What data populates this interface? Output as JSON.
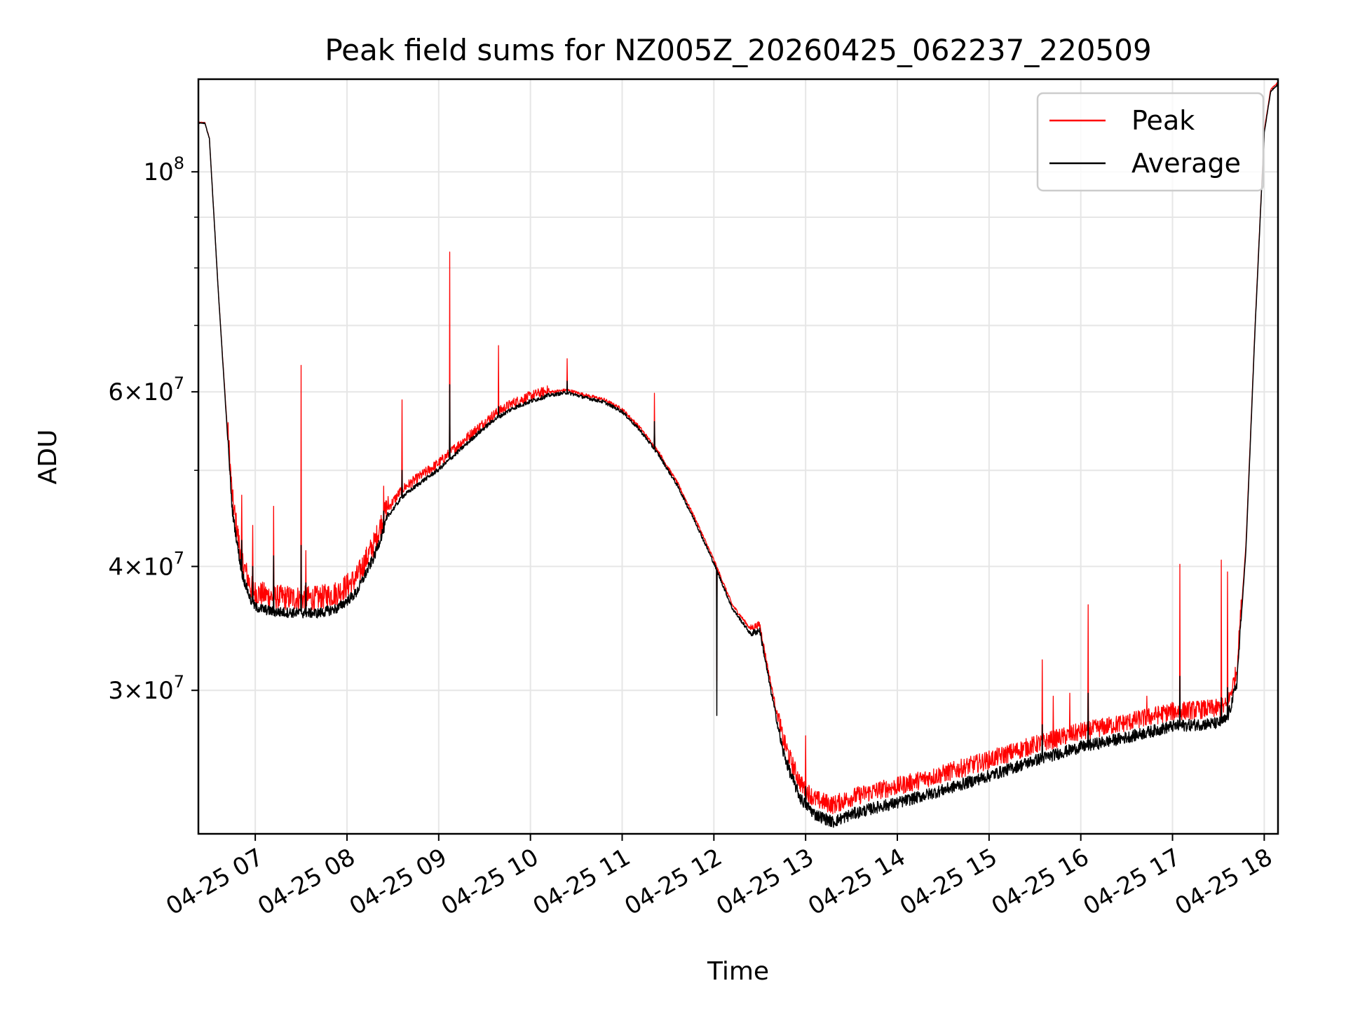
{
  "chart_data": {
    "type": "line",
    "title": "Peak field sums for NZ005Z_20260425_062237_220509",
    "xlabel": "Time",
    "ylabel": "ADU",
    "yscale": "log",
    "ylim": [
      21500000,
      124000000
    ],
    "xlim_hours": [
      6.38,
      18.15
    ],
    "grid": true,
    "legend_position": "top-right",
    "x_tick_labels": [
      "04-25 07",
      "04-25 08",
      "04-25 09",
      "04-25 10",
      "04-25 11",
      "04-25 12",
      "04-25 13",
      "04-25 14",
      "04-25 15",
      "04-25 16",
      "04-25 17",
      "04-25 18"
    ],
    "x_tick_hours": [
      7,
      8,
      9,
      10,
      11,
      12,
      13,
      14,
      15,
      16,
      17,
      18
    ],
    "y_ticks": [
      {
        "value": 30000000,
        "mantissa": "3",
        "exponent": "7"
      },
      {
        "value": 40000000,
        "mantissa": "4",
        "exponent": "7"
      },
      {
        "value": 60000000,
        "mantissa": "6",
        "exponent": "7"
      },
      {
        "value": 100000000,
        "mantissa": "",
        "exponent": "8"
      }
    ],
    "y_minor_ticks": [
      50000000,
      70000000,
      80000000,
      90000000
    ],
    "series": [
      {
        "name": "Peak",
        "color": "#ff0000",
        "x_hours": [
          6.38,
          6.45,
          6.5,
          6.6,
          6.75,
          6.85,
          6.95,
          7.0,
          7.2,
          7.5,
          7.7,
          7.9,
          8.1,
          8.3,
          8.45,
          8.6,
          8.8,
          9.0,
          9.2,
          9.4,
          9.6,
          9.8,
          10.0,
          10.2,
          10.4,
          10.6,
          10.8,
          11.0,
          11.2,
          11.4,
          11.6,
          11.8,
          12.0,
          12.2,
          12.4,
          12.5,
          12.6,
          12.75,
          12.85,
          12.95,
          13.1,
          13.3,
          13.5,
          13.8,
          14.0,
          14.5,
          15.0,
          15.5,
          16.0,
          16.5,
          17.0,
          17.5,
          17.6,
          17.7,
          17.8,
          17.9,
          18.0,
          18.07,
          18.15
        ],
        "values": [
          112000000,
          112000000,
          108000000,
          75000000,
          46000000,
          40000000,
          37500000,
          37000000,
          36600000,
          36500000,
          36500000,
          37000000,
          38200000,
          41500000,
          45500000,
          47500000,
          49000000,
          50500000,
          52500000,
          54500000,
          56500000,
          58000000,
          59000000,
          59800000,
          60100000,
          59400000,
          58800000,
          57500000,
          55000000,
          52000000,
          48500000,
          44500000,
          40500000,
          36500000,
          34500000,
          34800000,
          31000000,
          26500000,
          25000000,
          23800000,
          23000000,
          22700000,
          23100000,
          23500000,
          23700000,
          24400000,
          25200000,
          26100000,
          26900000,
          27500000,
          28200000,
          28400000,
          28600000,
          31000000,
          42000000,
          70000000,
          110000000,
          121000000,
          123000000
        ]
      },
      {
        "name": "Average",
        "color": "#000000",
        "x_hours": [
          6.38,
          6.45,
          6.5,
          6.6,
          6.75,
          6.85,
          6.95,
          7.0,
          7.2,
          7.5,
          7.7,
          7.9,
          8.1,
          8.3,
          8.45,
          8.6,
          8.8,
          9.0,
          9.2,
          9.4,
          9.6,
          9.8,
          10.0,
          10.2,
          10.4,
          10.6,
          10.8,
          11.0,
          11.2,
          11.4,
          11.6,
          11.8,
          12.0,
          12.2,
          12.4,
          12.5,
          12.6,
          12.75,
          12.85,
          12.95,
          13.1,
          13.3,
          13.5,
          13.8,
          14.0,
          14.5,
          15.0,
          15.5,
          16.0,
          16.5,
          17.0,
          17.5,
          17.6,
          17.7,
          17.8,
          17.9,
          18.0,
          18.07,
          18.15
        ],
        "values": [
          112000000,
          112000000,
          108000000,
          75000000,
          45500000,
          39500000,
          37000000,
          36400000,
          36000000,
          35900000,
          35900000,
          36300000,
          37600000,
          41000000,
          45000000,
          47000000,
          48600000,
          50100000,
          52100000,
          54200000,
          56200000,
          57700000,
          58700000,
          59500000,
          59900000,
          59200000,
          58600000,
          57300000,
          54800000,
          51800000,
          48300000,
          44300000,
          40300000,
          36300000,
          34200000,
          34500000,
          30700000,
          26100000,
          24500000,
          23300000,
          22500000,
          22100000,
          22500000,
          22900000,
          23100000,
          23800000,
          24600000,
          25500000,
          26300000,
          26900000,
          27600000,
          27800000,
          28100000,
          30500000,
          41500000,
          69500000,
          109500000,
          120500000,
          122500000
        ]
      }
    ],
    "spikes": [
      {
        "hour": 6.85,
        "peak": 47200000,
        "average": 42500000
      },
      {
        "hour": 6.97,
        "peak": 44000000,
        "average": 40000000
      },
      {
        "hour": 7.2,
        "peak": 46000000,
        "average": 41000000
      },
      {
        "hour": 7.5,
        "peak": 63800000,
        "average": 42000000
      },
      {
        "hour": 7.55,
        "peak": 41500000,
        "average": 38500000
      },
      {
        "hour": 8.4,
        "peak": 48200000,
        "average": 45500000
      },
      {
        "hour": 8.6,
        "peak": 58900000,
        "average": 50000000
      },
      {
        "hour": 9.12,
        "peak": 83000000,
        "average": 61000000
      },
      {
        "hour": 9.65,
        "peak": 66800000,
        "average": 58000000
      },
      {
        "hour": 10.4,
        "peak": 64800000,
        "average": 61500000
      },
      {
        "hour": 11.35,
        "peak": 59800000,
        "average": 56000000
      },
      {
        "hour": 12.03,
        "peak": 30700000,
        "average": 28300000
      },
      {
        "hour": 13.0,
        "peak": 27000000,
        "average": 24000000
      },
      {
        "hour": 15.58,
        "peak": 32200000,
        "average": 27700000
      },
      {
        "hour": 15.7,
        "peak": 29600000,
        "average": 26100000
      },
      {
        "hour": 15.88,
        "peak": 29800000,
        "average": 26400000
      },
      {
        "hour": 16.08,
        "peak": 36600000,
        "average": 29800000
      },
      {
        "hour": 16.72,
        "peak": 29600000,
        "average": 27300000
      },
      {
        "hour": 17.08,
        "peak": 40200000,
        "average": 31000000
      },
      {
        "hour": 17.53,
        "peak": 40600000,
        "average": 29500000
      },
      {
        "hour": 17.6,
        "peak": 39500000,
        "average": 30200000
      }
    ]
  }
}
